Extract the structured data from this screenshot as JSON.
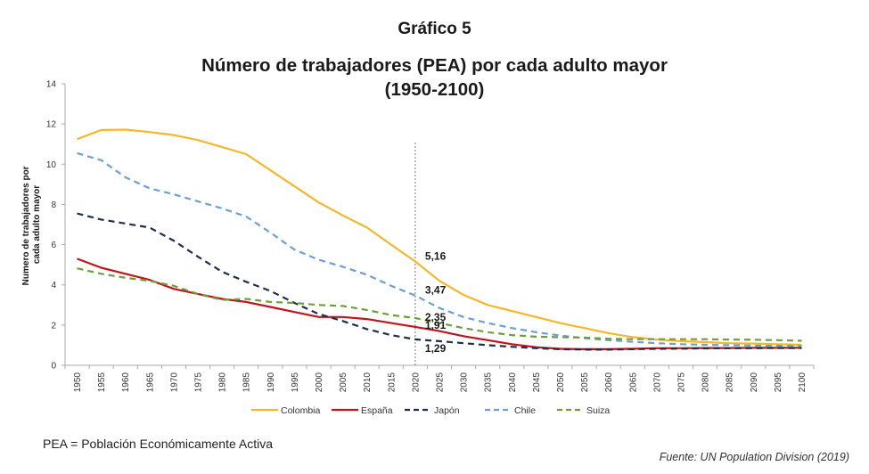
{
  "header": {
    "figure_label": "Gráfico 5",
    "title_line1": "Número de trabajadores (PEA) por cada adulto mayor",
    "title_line2": "(1950-2100)"
  },
  "footer": {
    "note": "PEA = Población Económicamente Activa",
    "source": "Fuente: UN Population Division (2019)"
  },
  "chart_data": {
    "type": "line",
    "title": "Número de trabajadores (PEA) por cada adulto mayor (1950-2100)",
    "xlabel": "",
    "ylabel": "Numero de trabajadores por cada adulto mayor",
    "ylim": [
      0,
      14
    ],
    "yticks": [
      0,
      2,
      4,
      6,
      8,
      10,
      12,
      14
    ],
    "grid": false,
    "legend_position": "bottom",
    "reference_line": {
      "x": "2020",
      "style": "dotted"
    },
    "x": [
      "1950",
      "1955",
      "1960",
      "1965",
      "1970",
      "1975",
      "1980",
      "1985",
      "1990",
      "1995",
      "2000",
      "2005",
      "2010",
      "2015",
      "2020",
      "2025",
      "2030",
      "2035",
      "2040",
      "2045",
      "2050",
      "2055",
      "2060",
      "2065",
      "2070",
      "2075",
      "2080",
      "2085",
      "2090",
      "2095",
      "2100"
    ],
    "series": [
      {
        "name": "Colombia",
        "color": "#F5B72A",
        "dash": "solid",
        "values": [
          11.25,
          11.7,
          11.72,
          11.6,
          11.45,
          11.2,
          10.85,
          10.5,
          9.7,
          8.9,
          8.1,
          7.45,
          6.85,
          6.0,
          5.16,
          4.2,
          3.5,
          3.0,
          2.7,
          2.4,
          2.1,
          1.85,
          1.6,
          1.4,
          1.28,
          1.2,
          1.15,
          1.1,
          1.08,
          1.05,
          1.02
        ]
      },
      {
        "name": "España",
        "color": "#C0141C",
        "dash": "solid",
        "values": [
          5.3,
          4.85,
          4.55,
          4.25,
          3.8,
          3.55,
          3.3,
          3.15,
          2.9,
          2.65,
          2.4,
          2.4,
          2.3,
          2.1,
          1.91,
          1.7,
          1.45,
          1.25,
          1.05,
          0.9,
          0.82,
          0.8,
          0.8,
          0.82,
          0.85,
          0.85,
          0.86,
          0.86,
          0.87,
          0.87,
          0.87
        ]
      },
      {
        "name": "Japón",
        "color": "#1F2E4A",
        "dash": "dashed",
        "values": [
          7.55,
          7.25,
          7.05,
          6.85,
          6.2,
          5.4,
          4.65,
          4.15,
          3.7,
          3.1,
          2.55,
          2.2,
          1.8,
          1.5,
          1.29,
          1.2,
          1.1,
          1.0,
          0.92,
          0.85,
          0.8,
          0.78,
          0.78,
          0.8,
          0.82,
          0.83,
          0.84,
          0.85,
          0.85,
          0.86,
          0.86
        ]
      },
      {
        "name": "Chile",
        "color": "#6C9FD4",
        "dash": "dashed",
        "values": [
          10.55,
          10.2,
          9.35,
          8.8,
          8.5,
          8.15,
          7.8,
          7.4,
          6.6,
          5.75,
          5.25,
          4.9,
          4.5,
          3.95,
          3.47,
          2.85,
          2.4,
          2.1,
          1.85,
          1.65,
          1.48,
          1.35,
          1.25,
          1.17,
          1.1,
          1.05,
          1.02,
          1.0,
          0.98,
          0.97,
          0.96
        ]
      },
      {
        "name": "Suiza",
        "color": "#6E9E3A",
        "dash": "dashed",
        "values": [
          4.82,
          4.55,
          4.35,
          4.2,
          3.95,
          3.55,
          3.25,
          3.3,
          3.15,
          3.1,
          3.0,
          2.95,
          2.75,
          2.5,
          2.35,
          2.1,
          1.85,
          1.65,
          1.5,
          1.42,
          1.4,
          1.38,
          1.32,
          1.3,
          1.3,
          1.3,
          1.3,
          1.28,
          1.27,
          1.25,
          1.22
        ]
      }
    ],
    "annotations": [
      {
        "x": "2020",
        "series": "Colombia",
        "label": "5,16"
      },
      {
        "x": "2020",
        "series": "Chile",
        "label": "3,47"
      },
      {
        "x": "2020",
        "series": "Suiza",
        "label": "2,35"
      },
      {
        "x": "2020",
        "series": "España",
        "label": "1,91"
      },
      {
        "x": "2020",
        "series": "Japón",
        "label": "1,29"
      }
    ]
  }
}
